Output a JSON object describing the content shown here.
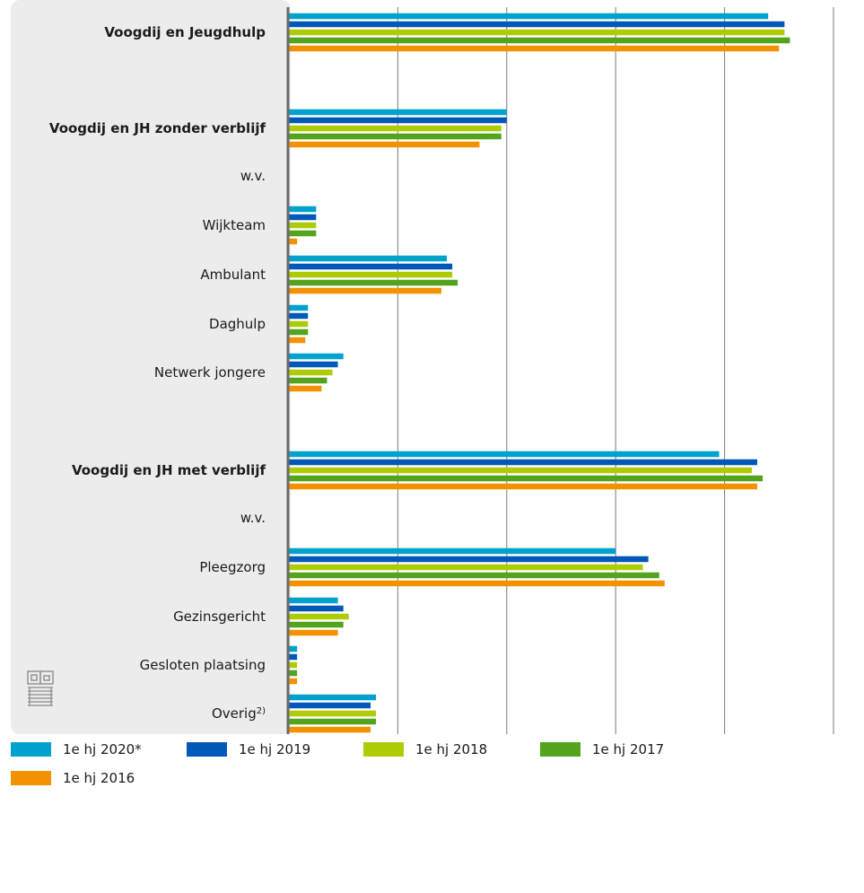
{
  "chart_data": {
    "type": "bar",
    "orientation": "horizontal",
    "unit": "%",
    "xlim": [
      0,
      100
    ],
    "xticks": [
      "0",
      "20",
      "40",
      "60",
      "80",
      "100"
    ],
    "grid": true,
    "legend_position": "bottom",
    "categories": [
      {
        "label": "Voogdij en Jeugdhulp",
        "bold": true
      },
      {
        "label": "Voogdij en JH zonder verblijf",
        "bold": true
      },
      {
        "label": "w.v.",
        "bold": false
      },
      {
        "label": "Wijkteam",
        "bold": false
      },
      {
        "label": "Ambulant",
        "bold": false
      },
      {
        "label": "Daghulp",
        "bold": false
      },
      {
        "label": "Netwerk jongere",
        "bold": false
      },
      {
        "label": "Voogdij en JH met verblijf",
        "bold": true
      },
      {
        "label": "w.v.",
        "bold": false
      },
      {
        "label": "Pleegzorg",
        "bold": false
      },
      {
        "label": "Gezinsgericht",
        "bold": false
      },
      {
        "label": "Gesloten plaatsing",
        "bold": false
      },
      {
        "label": "Overig",
        "sup": "2)",
        "bold": false
      }
    ],
    "series": [
      {
        "name": "1e hj 2020*",
        "color": "#00a1cd",
        "values": [
          88,
          40,
          null,
          5,
          29,
          3.5,
          10,
          79,
          null,
          60,
          9,
          1.5,
          16
        ]
      },
      {
        "name": "1e hj 2019",
        "color": "#0058b8",
        "values": [
          91,
          40,
          null,
          5,
          30,
          3.5,
          9,
          86,
          null,
          66,
          10,
          1.5,
          15
        ]
      },
      {
        "name": "1e hj 2018",
        "color": "#afcb05",
        "values": [
          91,
          39,
          null,
          5,
          30,
          3.5,
          8,
          85,
          null,
          65,
          11,
          1.5,
          16
        ]
      },
      {
        "name": "1e hj 2017",
        "color": "#53a31d",
        "values": [
          92,
          39,
          null,
          5,
          31,
          3.5,
          7,
          87,
          null,
          68,
          10,
          1.5,
          16
        ]
      },
      {
        "name": "1e hj 2016",
        "color": "#f39200",
        "values": [
          90,
          35,
          null,
          1.5,
          28,
          3,
          6,
          86,
          null,
          69,
          9,
          1.5,
          15
        ]
      }
    ]
  },
  "logo": {
    "name": "cbs-logo"
  }
}
